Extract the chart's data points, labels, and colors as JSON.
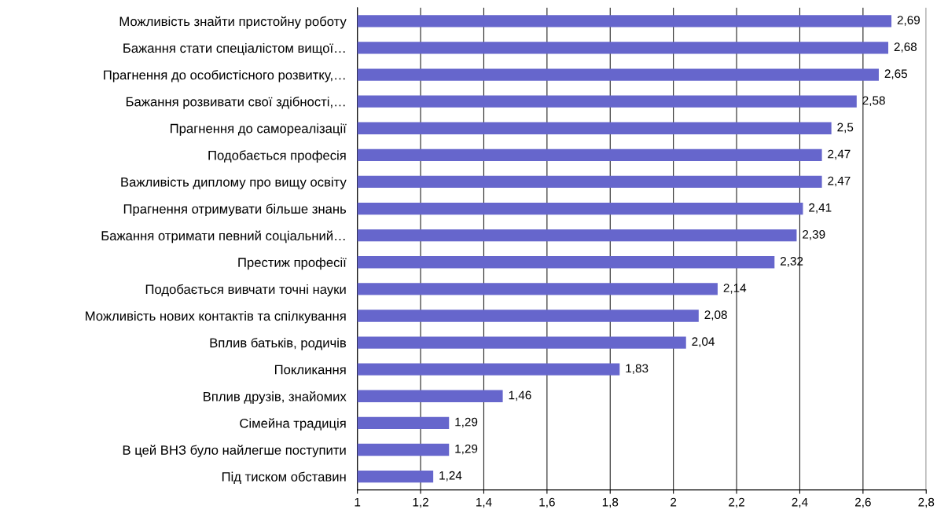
{
  "chart_data": {
    "type": "bar",
    "orientation": "horizontal",
    "categories": [
      "Можливість знайти пристойну роботу",
      "Бажання стати спеціалістом вищої…",
      "Прагнення до особистісного розвитку,…",
      "Бажання розвивати свої здібності,…",
      "Прагнення до самореалізації",
      "Подобається професія",
      "Важливість диплому про вищу освіту",
      "Прагнення отримувати більше знань",
      "Бажання отримати певний соціальний…",
      "Престиж професії",
      "Подобається вивчати точні науки",
      "Можливість нових контактів та спілкування",
      "Вплив батьків, родичів",
      "Покликання",
      "Вплив друзів, знайомих",
      "Сімейна традиція",
      "В цей ВНЗ було найлегше поступити",
      "Під тиском обставин"
    ],
    "values": [
      2.69,
      2.68,
      2.65,
      2.58,
      2.5,
      2.47,
      2.47,
      2.41,
      2.39,
      2.32,
      2.14,
      2.08,
      2.04,
      1.83,
      1.46,
      1.29,
      1.29,
      1.24
    ],
    "value_labels": [
      "2,69",
      "2,68",
      "2,65",
      "2,58",
      "2,5",
      "2,47",
      "2,47",
      "2,41",
      "2,39",
      "2,32",
      "2,14",
      "2,08",
      "2,04",
      "1,83",
      "1,46",
      "1,29",
      "1,29",
      "1,24"
    ],
    "color": "#6666cc",
    "xlim": [
      1,
      2.8
    ],
    "xticks": [
      1,
      {
        "value": 1.2,
        "label": "1,2"
      },
      {
        "value": 1.4,
        "label": "1,4"
      },
      {
        "value": 1.6,
        "label": "1,6"
      },
      {
        "value": 1.8,
        "label": "1,8"
      },
      2,
      {
        "value": 2.2,
        "label": "2,2"
      },
      {
        "value": 2.4,
        "label": "2,4"
      },
      {
        "value": 2.6,
        "label": "2,6"
      },
      {
        "value": 2.8,
        "label": "2,8"
      }
    ],
    "grid": "x",
    "legend": false
  }
}
